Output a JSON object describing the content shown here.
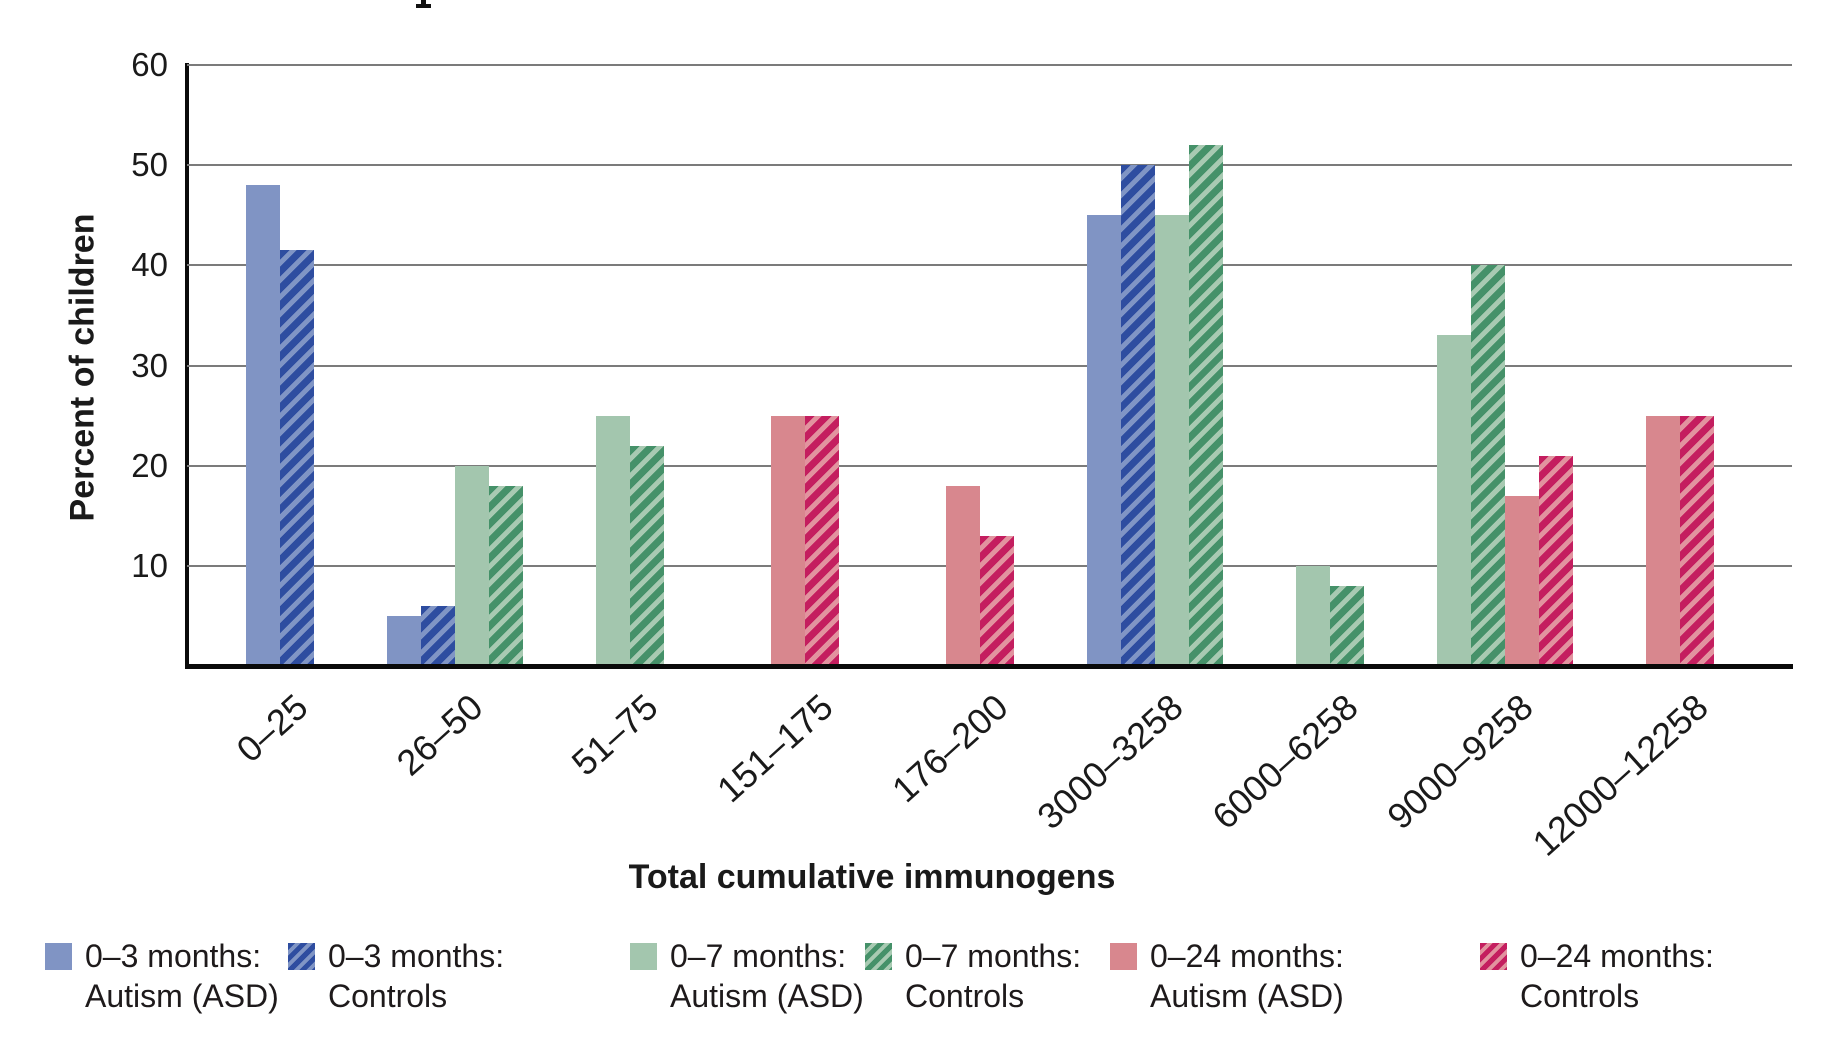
{
  "chart_data": {
    "type": "bar",
    "title": "",
    "xlabel": "Total cumulative immunogens",
    "ylabel": "Percent of children",
    "ylim": [
      0,
      60
    ],
    "yticks": [
      10,
      20,
      30,
      40,
      50,
      60
    ],
    "grid": true,
    "legend_position": "bottom",
    "categories": [
      "0–25",
      "26–50",
      "51–75",
      "151–175",
      "176–200",
      "3000–3258",
      "6000–6258",
      "9000–9258",
      "12000–12258"
    ],
    "series": [
      {
        "name": "0–3 months: Autism (ASD)",
        "style": "solid",
        "color": "#8094c4",
        "bg": "#8094c4",
        "values": [
          48,
          5,
          null,
          null,
          null,
          45,
          null,
          null,
          null
        ]
      },
      {
        "name": "0–3 months: Controls",
        "style": "hatched",
        "color": "#2e4da0",
        "bg": "#8095c5",
        "values": [
          41.5,
          6,
          null,
          null,
          null,
          50,
          null,
          null,
          null
        ]
      },
      {
        "name": "0–7 months: Autism (ASD)",
        "style": "solid",
        "color": "#a3c6ae",
        "bg": "#a3c6ae",
        "values": [
          null,
          20,
          25,
          null,
          null,
          45,
          10,
          33,
          null
        ]
      },
      {
        "name": "0–7 months: Controls",
        "style": "hatched",
        "color": "#459169",
        "bg": "#a8cab2",
        "values": [
          null,
          18,
          22,
          null,
          null,
          52,
          8,
          40,
          null
        ]
      },
      {
        "name": "0–24 months: Autism (ASD)",
        "style": "solid",
        "color": "#d8878e",
        "bg": "#d8878e",
        "values": [
          null,
          null,
          null,
          25,
          18,
          null,
          null,
          17,
          25
        ]
      },
      {
        "name": "0–24 months: Controls",
        "style": "hatched",
        "color": "#c41e5f",
        "bg": "#e2939f",
        "values": [
          null,
          null,
          null,
          25,
          13,
          null,
          null,
          21,
          25
        ]
      }
    ]
  },
  "legend": {
    "entries": [
      {
        "line1": "0–3 months:",
        "line2": "Autism (ASD)",
        "style": "solid",
        "color": "#8094c4",
        "bg": "#8094c4"
      },
      {
        "line1": "0–3 months:",
        "line2": "Controls",
        "style": "hatched",
        "color": "#2e4da0",
        "bg": "#8095c5"
      },
      {
        "line1": "0–7 months:",
        "line2": "Autism (ASD)",
        "style": "solid",
        "color": "#a3c6ae",
        "bg": "#a3c6ae"
      },
      {
        "line1": "0–7 months:",
        "line2": "Controls",
        "style": "hatched",
        "color": "#459169",
        "bg": "#a8cab2"
      },
      {
        "line1": "0–24 months:",
        "line2": "Autism (ASD)",
        "style": "solid",
        "color": "#d8878e",
        "bg": "#d8878e"
      },
      {
        "line1": "0–24 months:",
        "line2": "Controls",
        "style": "hatched",
        "color": "#c41e5f",
        "bg": "#e2939f"
      }
    ]
  }
}
